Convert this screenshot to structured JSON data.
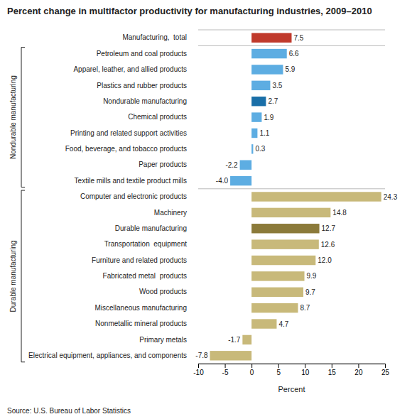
{
  "chart_data": {
    "type": "bar",
    "orientation": "horizontal",
    "title": "Percent change in multifactor productivity for manufacturing industries, 2009–2010",
    "source": "Source: U.S. Bureau of Labor Statistics",
    "xlabel": "Percent",
    "categories": [
      "Manufacturing,  total",
      "Petroleum and coal products",
      "Apparel, leather, and allied products",
      "Plastics and rubber products",
      "Nondurable manufacturing",
      "Chemical products",
      "Printing and related support activities",
      "Food, beverage, and tobacco products",
      "Paper products",
      "Textile mills and textile product mills",
      "Computer and electronic products",
      "Machinery",
      "Durable manufacturing",
      "Transportation  equipment",
      "Furniture and related products",
      "Fabricated metal  products",
      "Wood products",
      "Miscellaneous manufacturing",
      "Nonmetallic mineral products",
      "Primary metals",
      "Electrical equipment, appliances, and components"
    ],
    "values": [
      7.5,
      6.6,
      5.9,
      3.5,
      2.7,
      1.9,
      1.1,
      0.3,
      -2.2,
      -4.0,
      24.3,
      14.8,
      12.7,
      12.6,
      12.0,
      9.9,
      9.7,
      8.7,
      4.7,
      -1.7,
      -7.8
    ],
    "value_labels": [
      "7.5",
      "6.6",
      "5.9",
      "3.5",
      "2.7",
      "1.9",
      "1.1",
      "0.3",
      "-2.2",
      "-4.0",
      "24.3",
      "14.8",
      "12.7",
      "12.6",
      "12.0",
      "9.9",
      "9.7",
      "8.7",
      "4.7",
      "-1.7",
      "-7.8"
    ],
    "colors": [
      "#c0392b",
      "#5dade2",
      "#5dade2",
      "#5dade2",
      "#1a6fa8",
      "#5dade2",
      "#5dade2",
      "#5dade2",
      "#5dade2",
      "#5dade2",
      "#c8b97a",
      "#c8b97a",
      "#8b7a3a",
      "#c8b97a",
      "#c8b97a",
      "#c8b97a",
      "#c8b97a",
      "#c8b97a",
      "#c8b97a",
      "#c8b97a",
      "#c8b97a"
    ],
    "data_labels": true,
    "annotations": [
      {
        "text": "Nondurable manufacturing",
        "from": 1,
        "to": 9
      },
      {
        "text": "Durable manufacturing",
        "from": 10,
        "to": 20
      }
    ],
    "xlim": [
      -10,
      25
    ],
    "xticks": [
      -10,
      -5,
      0,
      5,
      10,
      15,
      20,
      25
    ]
  }
}
